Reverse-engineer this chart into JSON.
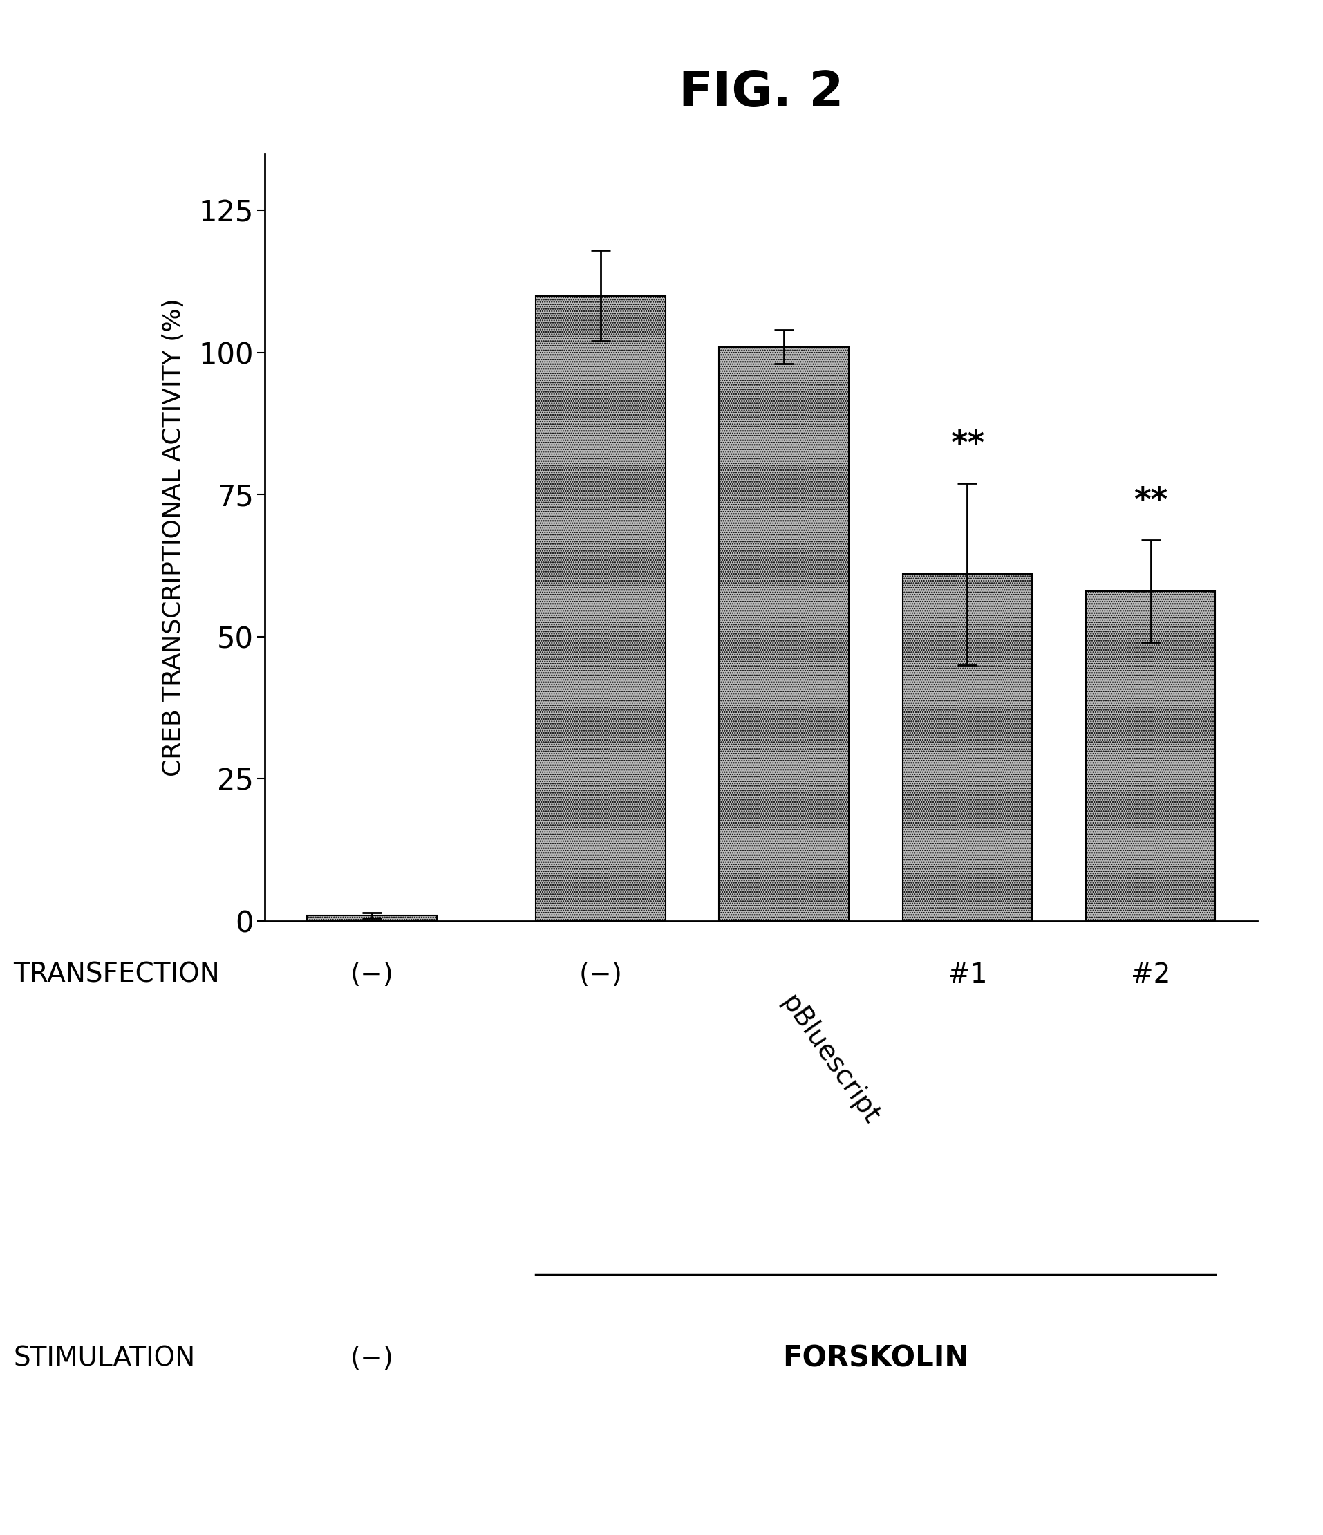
{
  "title": "FIG. 2",
  "ylabel": "CREB TRANSCRIPTIONAL ACTIVITY (%)",
  "bar_values": [
    1.0,
    110.0,
    101.0,
    61.0,
    58.0
  ],
  "bar_errors": [
    0.5,
    8.0,
    3.0,
    16.0,
    9.0
  ],
  "bar_color": "#b8b8b8",
  "bar_hatch": ".....",
  "bar_positions": [
    0.5,
    2.0,
    3.2,
    4.4,
    5.6
  ],
  "bar_width": 0.85,
  "ylim": [
    0,
    135
  ],
  "yticks": [
    0,
    25,
    50,
    75,
    100,
    125
  ],
  "transfection_labels": [
    "(−)",
    "(−)",
    "pBluescript",
    "#1",
    "#2"
  ],
  "stimulation_label_neg": "(−)",
  "stimulation_label_pos": "FORSKOLIN",
  "transfection_row_label": "TRANSFECTION",
  "stimulation_row_label": "STIMULATION",
  "significance_bars_idx": [
    3,
    4
  ],
  "significance_label": "**",
  "background_color": "#ffffff",
  "bar_edge_color": "#000000",
  "title_fontsize": 52,
  "axis_label_fontsize": 26,
  "tick_fontsize": 30,
  "annotation_fontsize": 34,
  "row_label_fontsize": 28,
  "tick_label_fontsize": 28,
  "forskolin_fontsize": 30
}
